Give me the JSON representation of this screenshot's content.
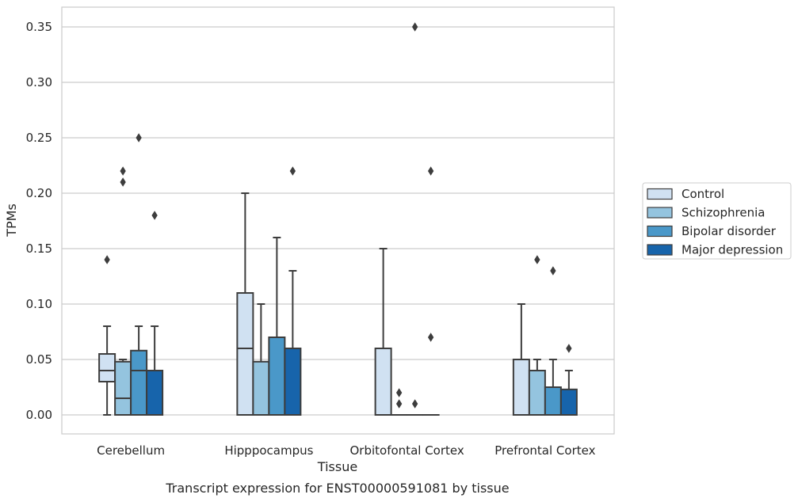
{
  "chart_data": {
    "type": "box",
    "title": "Transcript expression for ENST00000591081 by tissue",
    "xlabel": "Tissue",
    "ylabel": "TPMs",
    "ylim": [
      -0.017,
      0.367
    ],
    "yticks": [
      "0.00",
      "0.05",
      "0.10",
      "0.15",
      "0.20",
      "0.25",
      "0.30",
      "0.35"
    ],
    "grid": "horizontal",
    "legend_position": "right",
    "categories": [
      "Cerebellum",
      "Hipppocampus",
      "Orbitofontal Cortex",
      "Prefrontal Cortex"
    ],
    "series": [
      {
        "name": "Control",
        "color": "#d0e1f2",
        "boxes": [
          {
            "q1": 0.03,
            "median": 0.04,
            "q3": 0.055,
            "whislo": 0.0,
            "whishi": 0.08,
            "fliers": [
              0.14
            ]
          },
          {
            "q1": 0.0,
            "median": 0.06,
            "q3": 0.11,
            "whislo": 0.0,
            "whishi": 0.2,
            "fliers": []
          },
          {
            "q1": 0.0,
            "median": 0.0,
            "q3": 0.06,
            "whislo": 0.0,
            "whishi": 0.15,
            "fliers": []
          },
          {
            "q1": 0.0,
            "median": 0.0,
            "q3": 0.05,
            "whislo": 0.0,
            "whishi": 0.1,
            "fliers": []
          }
        ]
      },
      {
        "name": "Schizophrenia",
        "color": "#94c4df",
        "boxes": [
          {
            "q1": 0.0,
            "median": 0.015,
            "q3": 0.048,
            "whislo": 0.0,
            "whishi": 0.05,
            "fliers": [
              0.21,
              0.22
            ]
          },
          {
            "q1": 0.0,
            "median": 0.0,
            "q3": 0.048,
            "whislo": 0.0,
            "whishi": 0.1,
            "fliers": []
          },
          {
            "q1": 0.0,
            "median": 0.0,
            "q3": 0.0,
            "whislo": 0.0,
            "whishi": 0.0,
            "fliers": [
              0.01,
              0.02
            ]
          },
          {
            "q1": 0.0,
            "median": 0.0,
            "q3": 0.04,
            "whislo": 0.0,
            "whishi": 0.05,
            "fliers": [
              0.14
            ]
          }
        ]
      },
      {
        "name": "Bipolar disorder",
        "color": "#4a98c9",
        "boxes": [
          {
            "q1": 0.0,
            "median": 0.04,
            "q3": 0.058,
            "whislo": 0.0,
            "whishi": 0.08,
            "fliers": [
              0.25
            ]
          },
          {
            "q1": 0.0,
            "median": 0.0,
            "q3": 0.07,
            "whislo": 0.0,
            "whishi": 0.16,
            "fliers": []
          },
          {
            "q1": 0.0,
            "median": 0.0,
            "q3": 0.0,
            "whislo": 0.0,
            "whishi": 0.0,
            "fliers": [
              0.01,
              0.35
            ]
          },
          {
            "q1": 0.0,
            "median": 0.0,
            "q3": 0.025,
            "whislo": 0.0,
            "whishi": 0.05,
            "fliers": [
              0.13
            ]
          }
        ]
      },
      {
        "name": "Major depression",
        "color": "#1764ab",
        "boxes": [
          {
            "q1": 0.0,
            "median": 0.0,
            "q3": 0.04,
            "whislo": 0.0,
            "whishi": 0.08,
            "fliers": [
              0.18
            ]
          },
          {
            "q1": 0.0,
            "median": 0.0,
            "q3": 0.06,
            "whislo": 0.0,
            "whishi": 0.13,
            "fliers": [
              0.22
            ]
          },
          {
            "q1": 0.0,
            "median": 0.0,
            "q3": 0.0,
            "whislo": 0.0,
            "whishi": 0.0,
            "fliers": [
              0.07,
              0.22
            ]
          },
          {
            "q1": 0.0,
            "median": 0.0,
            "q3": 0.023,
            "whislo": 0.0,
            "whishi": 0.04,
            "fliers": [
              0.06
            ]
          }
        ]
      }
    ]
  }
}
